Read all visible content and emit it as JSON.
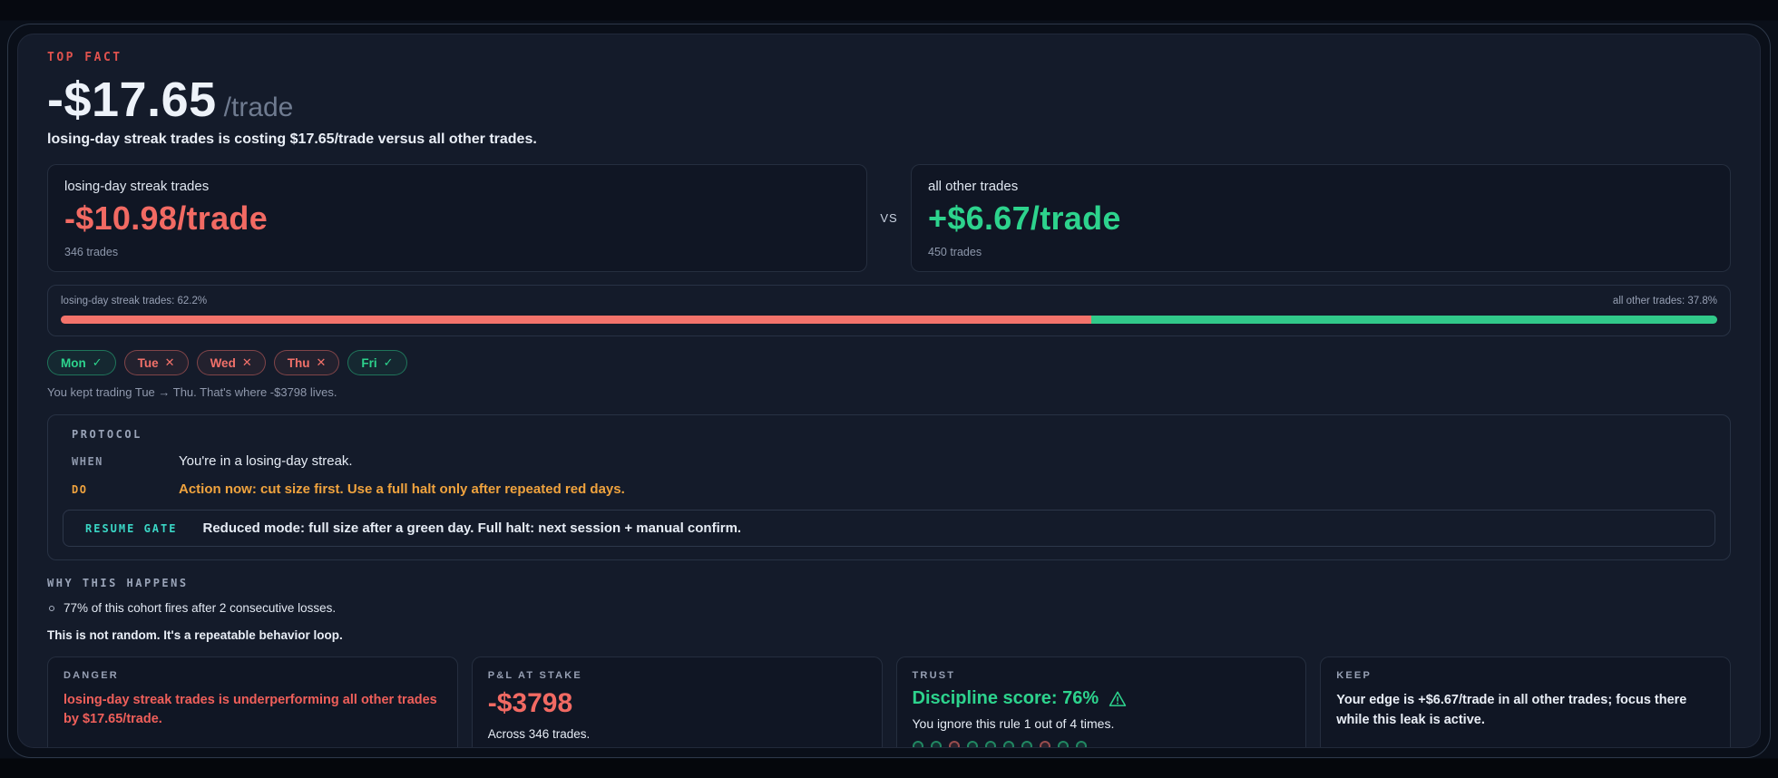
{
  "colors": {
    "background": "#0a0f19",
    "panel": "#141b2a",
    "negative": "#f26a63",
    "positive": "#2dd38d",
    "warning": "#f0a33e",
    "teal": "#3ad6c5",
    "muted": "#8d97ab"
  },
  "top_fact": {
    "label": "TOP FACT",
    "value": "-$17.65",
    "unit": "/trade",
    "subtitle": "losing-day streak trades is costing $17.65/trade versus all other trades."
  },
  "comparison": {
    "vs_label": "VS",
    "left": {
      "title": "losing-day streak trades",
      "value": "-$10.98/trade",
      "trades": "346 trades"
    },
    "right": {
      "title": "all other trades",
      "value": "+$6.67/trade",
      "trades": "450 trades"
    }
  },
  "share_bar": {
    "left_label": "losing-day streak trades: 62.2%",
    "right_label": "all other trades: 37.8%",
    "left_pct": 62.2,
    "right_pct": 37.8
  },
  "days": {
    "items": [
      {
        "label": "Mon",
        "status": "check",
        "icon": "✓"
      },
      {
        "label": "Tue",
        "status": "cross",
        "icon": "✕"
      },
      {
        "label": "Wed",
        "status": "cross",
        "icon": "✕"
      },
      {
        "label": "Thu",
        "status": "cross",
        "icon": "✕"
      },
      {
        "label": "Fri",
        "status": "check",
        "icon": "✓"
      }
    ],
    "caption": "You kept trading Tue → Thu. That's where -$3798 lives."
  },
  "protocol": {
    "label": "PROTOCOL",
    "rows": [
      {
        "key": "WHEN",
        "text": "You're in a losing-day streak."
      },
      {
        "key": "DO",
        "text": "Action now: cut size first. Use a full halt only after repeated red days."
      }
    ],
    "resume_gate": {
      "key": "RESUME GATE",
      "text": "Reduced mode: full size after a green day. Full halt: next session + manual confirm."
    }
  },
  "why": {
    "label": "WHY THIS HAPPENS",
    "bullet": "77% of this cohort fires after 2 consecutive losses.",
    "conclusion": "This is not random. It's a repeatable behavior loop."
  },
  "cards": {
    "danger": {
      "label": "DANGER",
      "text": "losing-day streak trades is underperforming all other trades by $17.65/trade."
    },
    "pnl": {
      "label": "P&L AT STAKE",
      "value": "-$3798",
      "caption": "Across 346 trades."
    },
    "trust": {
      "label": "TRUST",
      "headline": "Discipline score: 76%",
      "caption": "You ignore this rule 1 out of 4 times.",
      "dots": [
        "ok",
        "ok",
        "miss",
        "ok",
        "ok",
        "ok",
        "ok",
        "miss",
        "ok",
        "ok"
      ]
    },
    "keep": {
      "label": "KEEP",
      "text": "Your edge is +$6.67/trade in all other trades; focus there while this leak is active."
    }
  }
}
